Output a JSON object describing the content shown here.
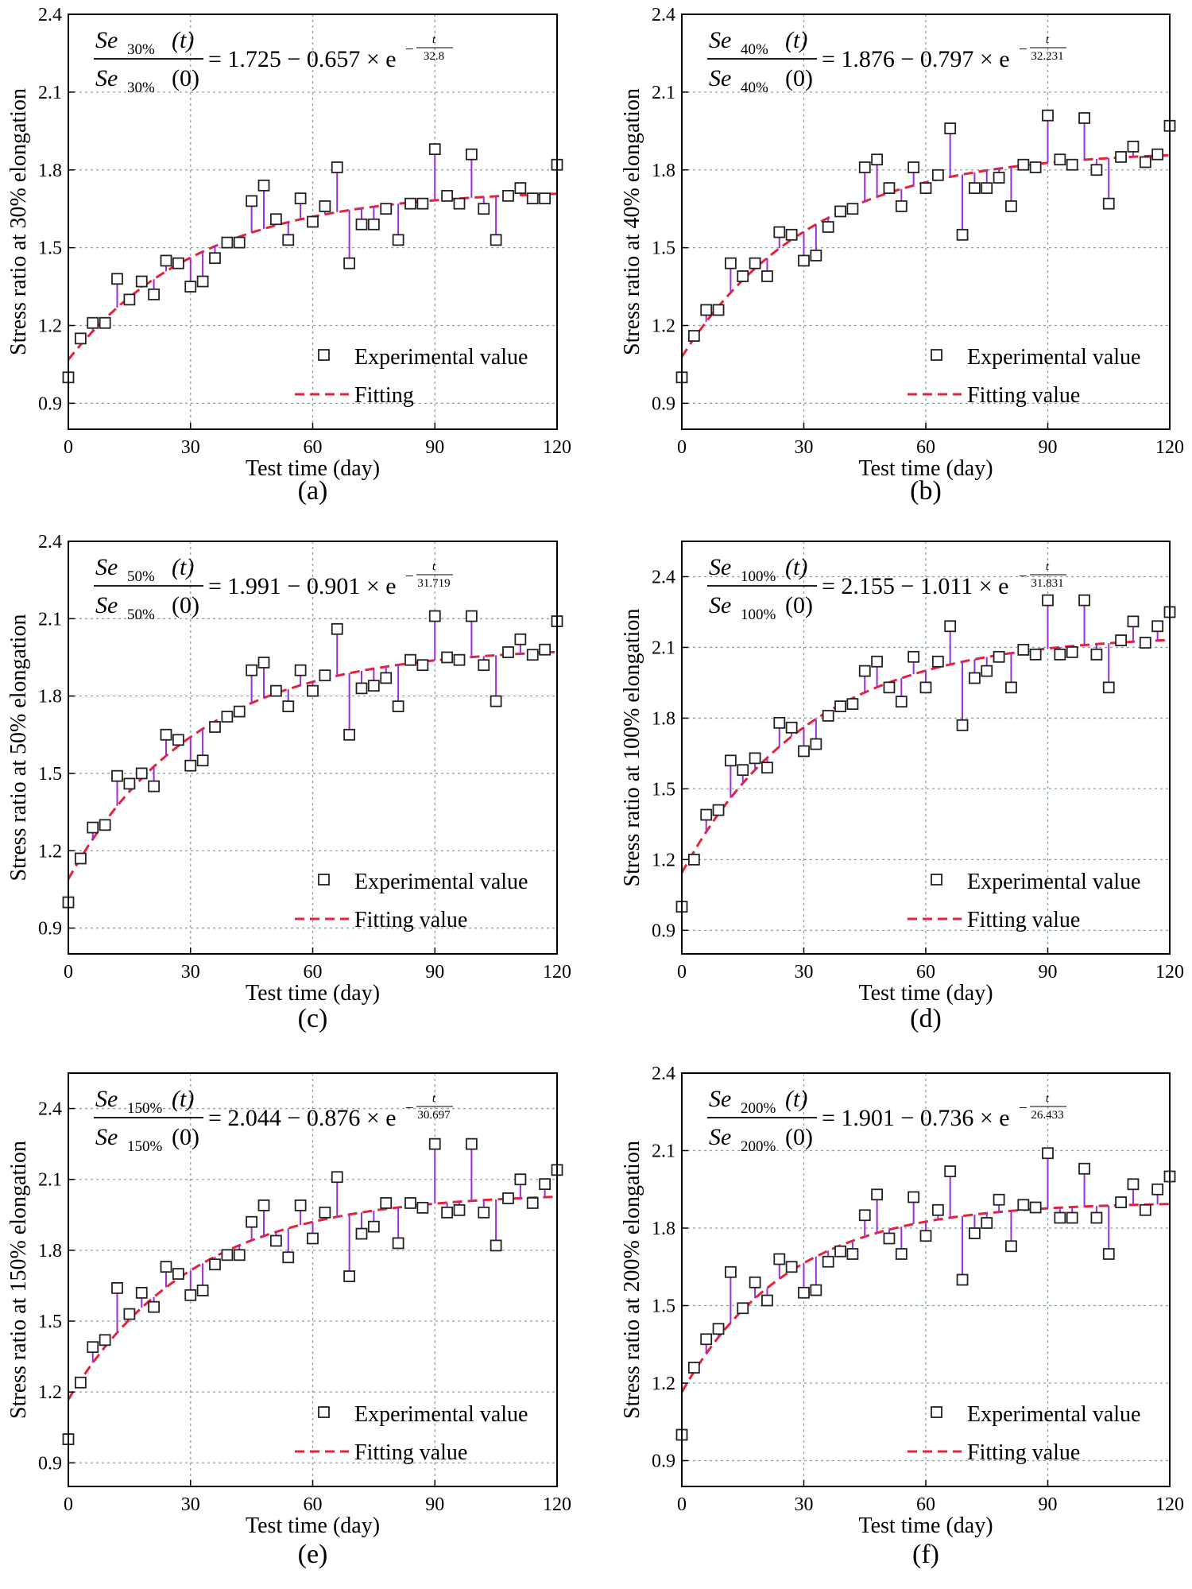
{
  "figure": {
    "legend_marker_label": "Experimental value",
    "colors": {
      "marker": "#222222",
      "errorbar": "#9b2fd6",
      "fit": "#e8213a",
      "grid": "#8aa0a8",
      "axis": "#000000"
    }
  },
  "chart_data": [
    {
      "type": "scatter",
      "panel_label": "(a)",
      "xlabel": "Test time (day)",
      "ylabel": "Stress ratio at 30% elongation",
      "xlim": [
        0,
        120
      ],
      "ylim": [
        0.8,
        2.4
      ],
      "xticks": [
        0,
        30,
        60,
        90,
        120
      ],
      "xtick_labels": [
        "0",
        "30",
        "60",
        "90",
        "120"
      ],
      "yticks": [
        0.9,
        1.2,
        1.5,
        1.8,
        2.1,
        2.4
      ],
      "ytick_labels": [
        "0.9",
        "1.2",
        "1.5",
        "1.8",
        "2.1",
        "2.4"
      ],
      "grid": true,
      "equation": {
        "numer": "Se",
        "denom": "Se",
        "sub": "30%",
        "numer_arg": "(t)",
        "denom_arg": "(0)",
        "rhs": "= 1.725 − 0.657 × e",
        "exp_t": "t",
        "exp_den": "32.8",
        "exp_sign": "−"
      },
      "fit_params": {
        "a": 1.725,
        "b": 0.657,
        "tau": 32.8
      },
      "legend": {
        "marker": "Experimental value",
        "line": "Fitting"
      },
      "series": [
        {
          "name": "Experimental value",
          "x": [
            0,
            3,
            6,
            9,
            12,
            15,
            18,
            21,
            24,
            27,
            30,
            33,
            36,
            39,
            42,
            45,
            48,
            51,
            54,
            57,
            60,
            63,
            66,
            69,
            72,
            75,
            78,
            81,
            84,
            87,
            90,
            93,
            96,
            99,
            102,
            105,
            108,
            111,
            114,
            117,
            120
          ],
          "y": [
            1.0,
            1.15,
            1.21,
            1.21,
            1.38,
            1.3,
            1.37,
            1.32,
            1.45,
            1.44,
            1.35,
            1.37,
            1.46,
            1.52,
            1.52,
            1.68,
            1.74,
            1.61,
            1.53,
            1.69,
            1.6,
            1.66,
            1.81,
            1.44,
            1.59,
            1.59,
            1.65,
            1.53,
            1.67,
            1.67,
            1.88,
            1.7,
            1.67,
            1.86,
            1.65,
            1.53,
            1.7,
            1.73,
            1.69,
            1.69,
            1.82
          ]
        }
      ]
    },
    {
      "type": "scatter",
      "panel_label": "(b)",
      "xlabel": "Test time (day)",
      "ylabel": "Stress ratio at 40% elongation",
      "xlim": [
        0,
        120
      ],
      "ylim": [
        0.8,
        2.4
      ],
      "xticks": [
        0,
        30,
        60,
        90,
        120
      ],
      "xtick_labels": [
        "0",
        "30",
        "60",
        "90",
        "120"
      ],
      "yticks": [
        0.9,
        1.2,
        1.5,
        1.8,
        2.1,
        2.4
      ],
      "ytick_labels": [
        "0.9",
        "1.2",
        "1.5",
        "1.8",
        "2.1",
        "2.4"
      ],
      "grid": true,
      "equation": {
        "numer": "Se",
        "denom": "Se",
        "sub": "40%",
        "numer_arg": "(t)",
        "denom_arg": "(0)",
        "rhs": "= 1.876 − 0.797 × e",
        "exp_t": "t",
        "exp_den": "32.231",
        "exp_sign": "−"
      },
      "fit_params": {
        "a": 1.876,
        "b": 0.797,
        "tau": 32.231
      },
      "legend": {
        "marker": "Experimental value",
        "line": "Fitting value"
      },
      "series": [
        {
          "name": "Experimental value",
          "x": [
            0,
            3,
            6,
            9,
            12,
            15,
            18,
            21,
            24,
            27,
            30,
            33,
            36,
            39,
            42,
            45,
            48,
            51,
            54,
            57,
            60,
            63,
            66,
            69,
            72,
            75,
            78,
            81,
            84,
            87,
            90,
            93,
            96,
            99,
            102,
            105,
            108,
            111,
            114,
            117,
            120
          ],
          "y": [
            1.0,
            1.16,
            1.26,
            1.26,
            1.44,
            1.39,
            1.44,
            1.39,
            1.56,
            1.55,
            1.45,
            1.47,
            1.58,
            1.64,
            1.65,
            1.81,
            1.84,
            1.73,
            1.66,
            1.81,
            1.73,
            1.78,
            1.96,
            1.55,
            1.73,
            1.73,
            1.77,
            1.66,
            1.82,
            1.81,
            2.01,
            1.84,
            1.82,
            2.0,
            1.8,
            1.67,
            1.85,
            1.89,
            1.83,
            1.86,
            1.97
          ]
        }
      ]
    },
    {
      "type": "scatter",
      "panel_label": "(c)",
      "xlabel": "Test time (day)",
      "ylabel": "Stress ratio at 50% elongation",
      "xlim": [
        0,
        120
      ],
      "ylim": [
        0.8,
        2.4
      ],
      "xticks": [
        0,
        30,
        60,
        90,
        120
      ],
      "xtick_labels": [
        "0",
        "30",
        "60",
        "90",
        "120"
      ],
      "yticks": [
        0.9,
        1.2,
        1.5,
        1.8,
        2.1,
        2.4
      ],
      "ytick_labels": [
        "0.9",
        "1.2",
        "1.5",
        "1.8",
        "2.1",
        "2.4"
      ],
      "grid": true,
      "equation": {
        "numer": "Se",
        "denom": "Se",
        "sub": "50%",
        "numer_arg": "(t)",
        "denom_arg": "(0)",
        "rhs": "= 1.991 − 0.901 × e",
        "exp_t": "t",
        "exp_den": "31.719",
        "exp_sign": "−"
      },
      "fit_params": {
        "a": 1.991,
        "b": 0.901,
        "tau": 31.719
      },
      "legend": {
        "marker": "Experimental value",
        "line": "Fitting value"
      },
      "series": [
        {
          "name": "Experimental value",
          "x": [
            0,
            3,
            6,
            9,
            12,
            15,
            18,
            21,
            24,
            27,
            30,
            33,
            36,
            39,
            42,
            45,
            48,
            51,
            54,
            57,
            60,
            63,
            66,
            69,
            72,
            75,
            78,
            81,
            84,
            87,
            90,
            93,
            96,
            99,
            102,
            105,
            108,
            111,
            114,
            117,
            120
          ],
          "y": [
            1.0,
            1.17,
            1.29,
            1.3,
            1.49,
            1.46,
            1.5,
            1.45,
            1.65,
            1.63,
            1.53,
            1.55,
            1.68,
            1.72,
            1.74,
            1.9,
            1.93,
            1.82,
            1.76,
            1.9,
            1.82,
            1.88,
            2.06,
            1.65,
            1.83,
            1.84,
            1.87,
            1.76,
            1.94,
            1.92,
            2.11,
            1.95,
            1.94,
            2.11,
            1.92,
            1.78,
            1.97,
            2.02,
            1.96,
            1.98,
            2.09
          ]
        }
      ]
    },
    {
      "type": "scatter",
      "panel_label": "(d)",
      "xlabel": "Test time (day)",
      "ylabel": "Stress ratio at 100% elongation",
      "xlim": [
        0,
        120
      ],
      "ylim": [
        0.8,
        2.55
      ],
      "xticks": [
        0,
        30,
        60,
        90,
        120
      ],
      "xtick_labels": [
        "0",
        "30",
        "60",
        "90",
        "120"
      ],
      "yticks": [
        0.9,
        1.2,
        1.5,
        1.8,
        2.1,
        2.4
      ],
      "ytick_labels": [
        "0.9",
        "1.2",
        "1.5",
        "1.8",
        "2.1",
        "2.4"
      ],
      "grid": true,
      "equation": {
        "numer": "Se",
        "denom": "Se",
        "sub": "100%",
        "numer_arg": "(t)",
        "denom_arg": "(0)",
        "rhs": "= 2.155 − 1.011 × e",
        "exp_t": "t",
        "exp_den": "31.831",
        "exp_sign": "−"
      },
      "fit_params": {
        "a": 2.155,
        "b": 1.011,
        "tau": 31.831
      },
      "legend": {
        "marker": "Experimental value",
        "line": "Fitting value"
      },
      "series": [
        {
          "name": "Experimental value",
          "x": [
            0,
            3,
            6,
            9,
            12,
            15,
            18,
            21,
            24,
            27,
            30,
            33,
            36,
            39,
            42,
            45,
            48,
            51,
            54,
            57,
            60,
            63,
            66,
            69,
            72,
            75,
            78,
            81,
            84,
            87,
            90,
            93,
            96,
            99,
            102,
            105,
            108,
            111,
            114,
            117,
            120
          ],
          "y": [
            1.0,
            1.2,
            1.39,
            1.41,
            1.62,
            1.58,
            1.63,
            1.59,
            1.78,
            1.76,
            1.66,
            1.69,
            1.81,
            1.85,
            1.86,
            2.0,
            2.04,
            1.93,
            1.87,
            2.06,
            1.93,
            2.04,
            2.19,
            1.77,
            1.97,
            2.0,
            2.06,
            1.93,
            2.09,
            2.07,
            2.3,
            2.07,
            2.08,
            2.3,
            2.07,
            1.93,
            2.13,
            2.21,
            2.12,
            2.19,
            2.25
          ]
        }
      ]
    },
    {
      "type": "scatter",
      "panel_label": "(e)",
      "xlabel": "Test time (day)",
      "ylabel": "Stress ratio at 150% elongation",
      "xlim": [
        0,
        120
      ],
      "ylim": [
        0.8,
        2.55
      ],
      "xticks": [
        0,
        30,
        60,
        90,
        120
      ],
      "xtick_labels": [
        "0",
        "30",
        "60",
        "90",
        "120"
      ],
      "yticks": [
        0.9,
        1.2,
        1.5,
        1.8,
        2.1,
        2.4
      ],
      "ytick_labels": [
        "0.9",
        "1.2",
        "1.5",
        "1.8",
        "2.1",
        "2.4"
      ],
      "grid": true,
      "equation": {
        "numer": "Se",
        "denom": "Se",
        "sub": "150%",
        "numer_arg": "(t)",
        "denom_arg": "(0)",
        "rhs": "= 2.044 − 0.876 × e",
        "exp_t": "t",
        "exp_den": "30.697",
        "exp_sign": "−"
      },
      "fit_params": {
        "a": 2.044,
        "b": 0.876,
        "tau": 30.697
      },
      "legend": {
        "marker": "Experimental value",
        "line": "Fitting value"
      },
      "series": [
        {
          "name": "Experimental value",
          "x": [
            0,
            3,
            6,
            9,
            12,
            15,
            18,
            21,
            24,
            27,
            30,
            33,
            36,
            39,
            42,
            45,
            48,
            51,
            54,
            57,
            60,
            63,
            66,
            69,
            72,
            75,
            78,
            81,
            84,
            87,
            90,
            93,
            96,
            99,
            102,
            105,
            108,
            111,
            114,
            117,
            120
          ],
          "y": [
            1.0,
            1.24,
            1.39,
            1.42,
            1.64,
            1.53,
            1.62,
            1.56,
            1.73,
            1.7,
            1.61,
            1.63,
            1.74,
            1.78,
            1.78,
            1.92,
            1.99,
            1.84,
            1.77,
            1.99,
            1.85,
            1.96,
            2.11,
            1.69,
            1.87,
            1.9,
            2.0,
            1.83,
            2.0,
            1.98,
            2.25,
            1.96,
            1.97,
            2.25,
            1.96,
            1.82,
            2.02,
            2.1,
            2.0,
            2.08,
            2.14
          ]
        }
      ]
    },
    {
      "type": "scatter",
      "panel_label": "(f)",
      "xlabel": "Test time (day)",
      "ylabel": "Stress ratio at 200% elongation",
      "xlim": [
        0,
        120
      ],
      "ylim": [
        0.8,
        2.4
      ],
      "xticks": [
        0,
        30,
        60,
        90,
        120
      ],
      "xtick_labels": [
        "0",
        "30",
        "60",
        "90",
        "120"
      ],
      "yticks": [
        0.9,
        1.2,
        1.5,
        1.8,
        2.1,
        2.4
      ],
      "ytick_labels": [
        "0.9",
        "1.2",
        "1.5",
        "1.8",
        "2.1",
        "2.4"
      ],
      "grid": true,
      "equation": {
        "numer": "Se",
        "denom": "Se",
        "sub": "200%",
        "numer_arg": "(t)",
        "denom_arg": "(0)",
        "rhs": "= 1.901 − 0.736 × e",
        "exp_t": "t",
        "exp_den": "26.433",
        "exp_sign": "−"
      },
      "fit_params": {
        "a": 1.901,
        "b": 0.736,
        "tau": 26.433
      },
      "legend": {
        "marker": "Experimental value",
        "line": "Fitting value"
      },
      "series": [
        {
          "name": "Experimental value",
          "x": [
            0,
            3,
            6,
            9,
            12,
            15,
            18,
            21,
            24,
            27,
            30,
            33,
            36,
            39,
            42,
            45,
            48,
            51,
            54,
            57,
            60,
            63,
            66,
            69,
            72,
            75,
            78,
            81,
            84,
            87,
            90,
            93,
            96,
            99,
            102,
            105,
            108,
            111,
            114,
            117,
            120
          ],
          "y": [
            1.0,
            1.26,
            1.37,
            1.41,
            1.63,
            1.49,
            1.59,
            1.52,
            1.68,
            1.65,
            1.55,
            1.56,
            1.67,
            1.71,
            1.7,
            1.85,
            1.93,
            1.76,
            1.7,
            1.92,
            1.77,
            1.87,
            2.02,
            1.6,
            1.78,
            1.82,
            1.91,
            1.73,
            1.89,
            1.88,
            2.09,
            1.84,
            1.84,
            2.03,
            1.84,
            1.7,
            1.9,
            1.97,
            1.87,
            1.95,
            2.0
          ]
        }
      ]
    }
  ]
}
